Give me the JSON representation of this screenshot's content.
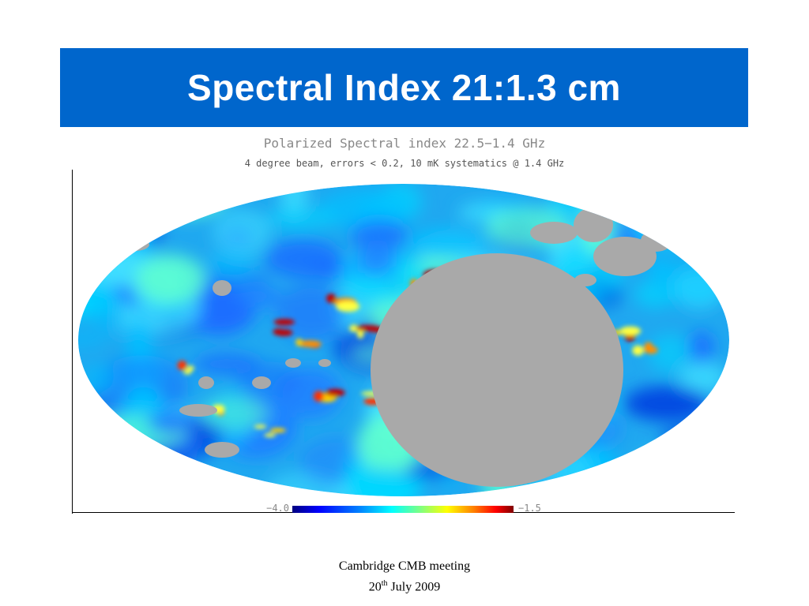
{
  "slide": {
    "title": "Spectral Index 21:1.3 cm"
  },
  "figure": {
    "title": "Polarized Spectral index 22.5−1.4 GHz",
    "subtitle": "4 degree beam, errors < 0.2, 10 mK systematics @ 1.4 GHz",
    "colorbar": {
      "min_label": "−4.0",
      "max_label": "−1.5",
      "min": -4.0,
      "max": -1.5
    },
    "colors": {
      "masked": "#a9a9a9",
      "background": "#ffffff"
    }
  },
  "footer": {
    "line1": "Cambridge CMB meeting",
    "day": "20",
    "day_suffix": "th",
    "month_year": " July 2009"
  },
  "colors": {
    "title_bar": "#0066cc",
    "title_text": "#ffffff"
  }
}
